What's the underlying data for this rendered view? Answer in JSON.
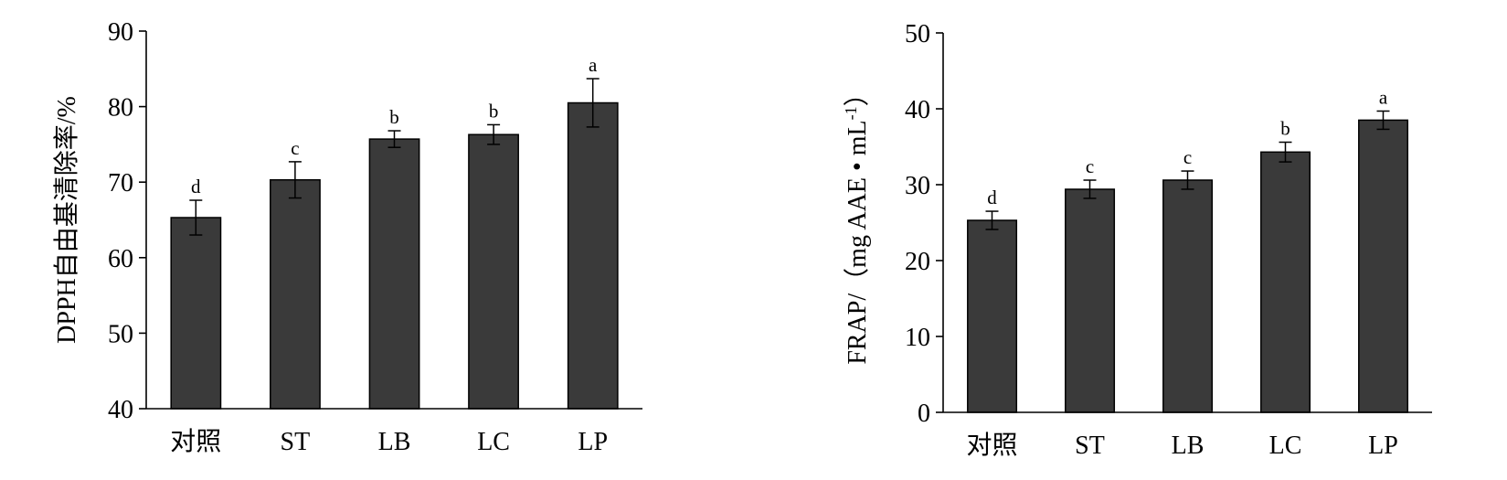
{
  "chart_data": [
    {
      "type": "bar",
      "title": "",
      "xlabel": "",
      "ylabel": "DPPH自由基清除率/%",
      "ylim": [
        40,
        90
      ],
      "yticks": [
        40,
        50,
        60,
        70,
        80,
        90
      ],
      "categories": [
        "对照",
        "ST",
        "LB",
        "LC",
        "LP"
      ],
      "values": [
        65.3,
        70.3,
        75.7,
        76.3,
        80.5
      ],
      "errors": [
        2.3,
        2.4,
        1.1,
        1.3,
        3.2
      ],
      "significance": [
        "d",
        "c",
        "b",
        "b",
        "a"
      ],
      "bar_color": "#3a3a3a",
      "grid": false,
      "legend": "none"
    },
    {
      "type": "bar",
      "title": "",
      "xlabel": "",
      "ylabel": "FRAP/（mg AAE • mL",
      "ylabel_superscript": "-1",
      "ylabel_suffix": "）",
      "ylim": [
        0,
        50
      ],
      "yticks": [
        0,
        10,
        20,
        30,
        40,
        50
      ],
      "categories": [
        "对照",
        "ST",
        "LB",
        "LC",
        "LP"
      ],
      "values": [
        25.3,
        29.4,
        30.6,
        34.3,
        38.5
      ],
      "errors": [
        1.2,
        1.2,
        1.2,
        1.3,
        1.2
      ],
      "significance": [
        "d",
        "c",
        "c",
        "b",
        "a"
      ],
      "bar_color": "#3a3a3a",
      "grid": false,
      "legend": "none"
    }
  ]
}
